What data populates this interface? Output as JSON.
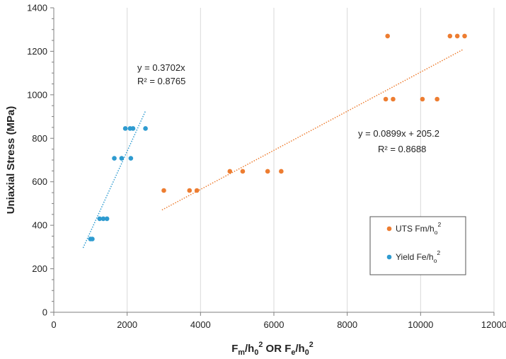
{
  "chart_data": {
    "type": "scatter",
    "xlabel": {
      "parts": [
        {
          "text": "F",
          "shift": "base"
        },
        {
          "text": "m",
          "shift": "sub"
        },
        {
          "text": "/h",
          "shift": "base"
        },
        {
          "text": "0",
          "shift": "sub"
        },
        {
          "text": "2",
          "shift": "sup"
        },
        {
          "text": " OR F",
          "shift": "base"
        },
        {
          "text": "e",
          "shift": "sub"
        },
        {
          "text": "/h",
          "shift": "base"
        },
        {
          "text": "0",
          "shift": "sub"
        },
        {
          "text": "2",
          "shift": "sup"
        }
      ]
    },
    "ylabel": "Uniaxial Stress (MPa)",
    "xlim": [
      0,
      12000
    ],
    "ylim": [
      0,
      1400
    ],
    "x_ticks": [
      0,
      2000,
      4000,
      6000,
      8000,
      10000,
      12000
    ],
    "y_ticks": [
      0,
      200,
      400,
      600,
      800,
      1000,
      1200,
      1400
    ],
    "grid": "vertical",
    "legend_position": "bottom-right",
    "series": [
      {
        "key": "uts",
        "legend": {
          "parts": [
            {
              "text": "UTS Fm/h",
              "shift": "base"
            },
            {
              "text": "o",
              "shift": "sub"
            },
            {
              "text": "2",
              "shift": "sup"
            }
          ]
        },
        "color": "#ED7D31",
        "points": [
          [
            3000,
            560
          ],
          [
            3700,
            560
          ],
          [
            3900,
            560
          ],
          [
            4800,
            648
          ],
          [
            5150,
            648
          ],
          [
            5830,
            648
          ],
          [
            6200,
            648
          ],
          [
            9050,
            980
          ],
          [
            9250,
            980
          ],
          [
            10050,
            980
          ],
          [
            10450,
            980
          ],
          [
            9100,
            1270
          ],
          [
            10800,
            1270
          ],
          [
            11000,
            1270
          ],
          [
            11200,
            1270
          ]
        ],
        "trendline": {
          "slope": 0.0899,
          "intercept": 205.2,
          "x_range": [
            2950,
            11150
          ],
          "equation": "y = 0.0899x + 205.2",
          "r_squared": "R² = 0.8688"
        }
      },
      {
        "key": "yield",
        "legend": {
          "parts": [
            {
              "text": "Yield Fe/h",
              "shift": "base"
            },
            {
              "text": "o",
              "shift": "sub"
            },
            {
              "text": "2",
              "shift": "sup"
            }
          ]
        },
        "color": "#2E9BD0",
        "points": [
          [
            1000,
            337
          ],
          [
            1050,
            337
          ],
          [
            1250,
            430
          ],
          [
            1350,
            430
          ],
          [
            1450,
            430
          ],
          [
            1650,
            708
          ],
          [
            1850,
            708
          ],
          [
            2100,
            708
          ],
          [
            1950,
            845
          ],
          [
            2080,
            845
          ],
          [
            2160,
            845
          ],
          [
            2500,
            845
          ]
        ],
        "trendline": {
          "slope": 0.3702,
          "intercept": 0,
          "x_range": [
            800,
            2500
          ],
          "equation": "y = 0.3702x",
          "r_squared": "R² = 0.8765"
        }
      }
    ]
  }
}
